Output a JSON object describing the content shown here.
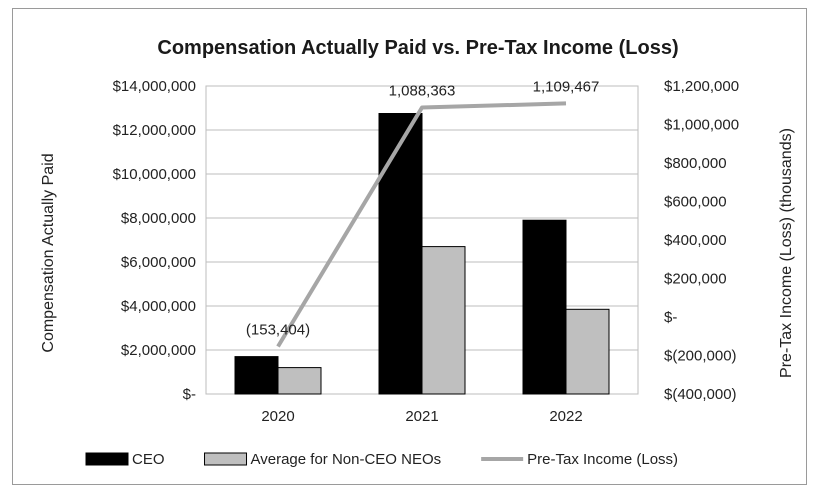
{
  "chart_data": {
    "type": "bar",
    "title": "Compensation Actually Paid vs. Pre-Tax Income (Loss)",
    "categories": [
      "2020",
      "2021",
      "2022"
    ],
    "series": [
      {
        "name": "CEO",
        "type": "bar",
        "axis": "left",
        "values": [
          1700000,
          12750000,
          7900000
        ],
        "color": "#000000"
      },
      {
        "name": "Average for Non-CEO NEOs",
        "type": "bar",
        "axis": "left",
        "values": [
          1200000,
          6700000,
          3850000
        ],
        "color": "#bfbfbf"
      },
      {
        "name": "Pre-Tax Income (Loss)",
        "type": "line",
        "axis": "right",
        "values": [
          -153404,
          1088363,
          1109467
        ],
        "color": "#a6a6a6"
      }
    ],
    "data_labels": [
      "(153,404)",
      "1,088,363",
      "1,109,467"
    ],
    "ylabel_left": "Compensation Actually Paid",
    "ylabel_right": "Pre-Tax Income (Loss) (thousands)",
    "ylim_left": [
      0,
      14000000
    ],
    "ylim_right": [
      -400000,
      1200000
    ],
    "yticks_left": [
      "$-",
      "$2,000,000",
      "$4,000,000",
      "$6,000,000",
      "$8,000,000",
      "$10,000,000",
      "$12,000,000",
      "$14,000,000"
    ],
    "yticks_right": [
      "$(400,000)",
      "$(200,000)",
      "$-",
      "$200,000",
      "$400,000",
      "$600,000",
      "$800,000",
      "$1,000,000",
      "$1,200,000"
    ],
    "grid": true,
    "legend": "bottom"
  }
}
